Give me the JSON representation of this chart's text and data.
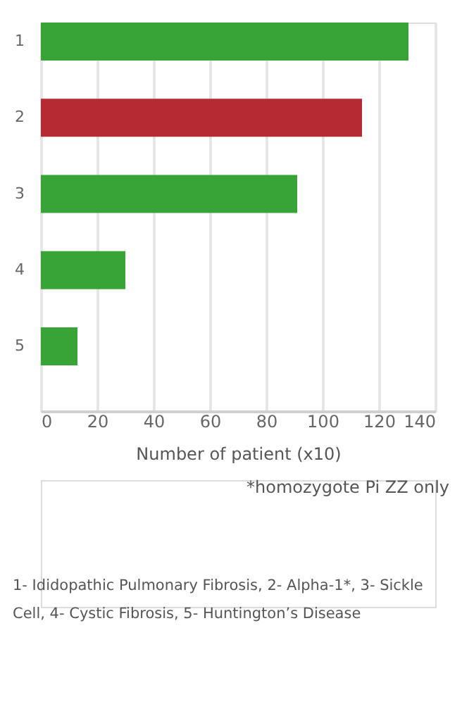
{
  "chart_data": {
    "type": "bar",
    "orientation": "horizontal",
    "categories": [
      "1",
      "2",
      "3",
      "4",
      "5"
    ],
    "values": [
      130.5,
      114,
      91,
      30,
      13
    ],
    "colors": [
      "#38a336",
      "#b52a33",
      "#38a336",
      "#38a336",
      "#38a336"
    ],
    "xlabel": "Number of patient (x10)",
    "xlim": [
      0,
      140
    ],
    "xticks": [
      0,
      20,
      40,
      60,
      80,
      100,
      120,
      140
    ],
    "grid": "x",
    "annotations": [
      "*homozygote Pi ZZ only",
      "1- Ididopathic Pulmonary Fibrosis, 2- Alpha-1*, 3- Sickle Cell, 4- Cystic Fibrosis, 5- Huntington’s Disease"
    ]
  }
}
